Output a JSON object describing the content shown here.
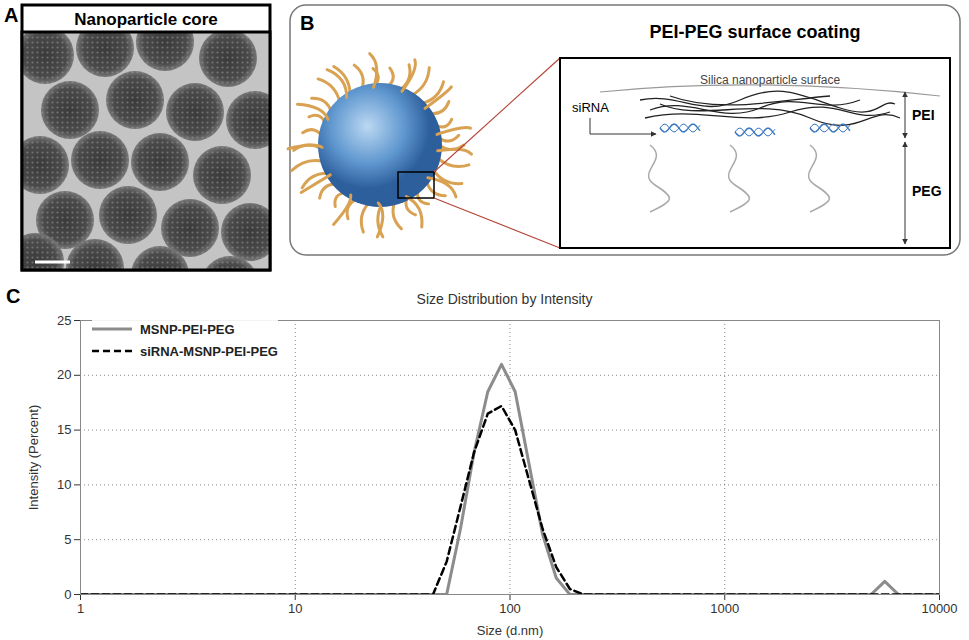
{
  "panels": {
    "A": {
      "label": "A",
      "title": "Nanoparticle core"
    },
    "B": {
      "label": "B",
      "title": "PEI-PEG surface coating",
      "surface": "Silica nanoparticle surface",
      "sirna": "siRNA",
      "layers": [
        "PEI",
        "PEG"
      ]
    },
    "C": {
      "label": "C"
    }
  },
  "chart_data": {
    "type": "line",
    "title": "Size Distribution by Intensity",
    "x_label": "Size (d.nm)",
    "y_label": "Intensity (Percent)",
    "log": "x",
    "x": [
      1,
      43.8,
      50.7,
      58.8,
      68.1,
      78.8,
      91.3,
      105.7,
      122.4,
      141.8,
      164.2,
      190.1,
      220.2,
      4801,
      5560,
      6439,
      10000
    ],
    "series": [
      {
        "name": "MSNP-PEI-PEG",
        "color": "#8c8c8c",
        "line_style": "solid",
        "values": [
          0,
          0,
          0,
          6,
          13,
          18.5,
          21,
          18.5,
          12,
          5.5,
          1.5,
          0,
          0,
          0,
          1.2,
          0,
          0
        ]
      },
      {
        "name": "siRNA-MSNP-PEI-PEG",
        "color": "#000000",
        "line_style": "dashed",
        "values": [
          0,
          0,
          3,
          8,
          13,
          16.5,
          17.2,
          15,
          10.5,
          6,
          2.5,
          0.5,
          0,
          0,
          0,
          0,
          0
        ]
      }
    ],
    "xlim": [
      1,
      10000
    ],
    "xticks": [
      1,
      10,
      100,
      1000,
      10000
    ],
    "ylim": [
      0,
      25
    ],
    "yticks": [
      0,
      5,
      10,
      15,
      20,
      25
    ],
    "grid": true,
    "legend": "top-left"
  }
}
